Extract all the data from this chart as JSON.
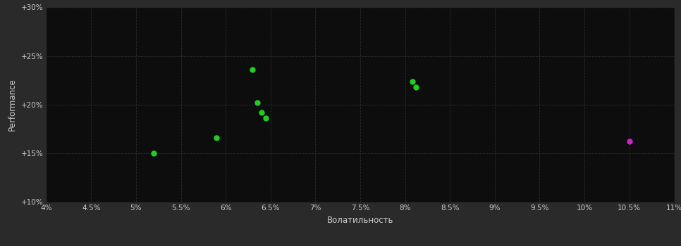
{
  "background_color": "#2a2a2a",
  "plot_bg_color": "#0d0d0d",
  "grid_color": "#2d2d2d",
  "text_color": "#cccccc",
  "xlabel": "Волатильность",
  "ylabel": "Performance",
  "xlim": [
    0.04,
    0.11
  ],
  "ylim": [
    0.1,
    0.3
  ],
  "xticks": [
    0.04,
    0.045,
    0.05,
    0.055,
    0.06,
    0.065,
    0.07,
    0.075,
    0.08,
    0.085,
    0.09,
    0.095,
    0.1,
    0.105,
    0.11
  ],
  "xtick_labels": [
    "4%",
    "4.5%",
    "5%",
    "5.5%",
    "6%",
    "6.5%",
    "7%",
    "7.5%",
    "8%",
    "8.5%",
    "9%",
    "9.5%",
    "10%",
    "10.5%",
    "11%"
  ],
  "yticks": [
    0.1,
    0.15,
    0.2,
    0.25,
    0.3
  ],
  "ytick_labels": [
    "+10%",
    "+15%",
    "+20%",
    "+25%",
    "+30%"
  ],
  "green_points": [
    [
      0.052,
      0.15
    ],
    [
      0.059,
      0.166
    ],
    [
      0.063,
      0.236
    ],
    [
      0.0635,
      0.202
    ],
    [
      0.064,
      0.192
    ],
    [
      0.0645,
      0.186
    ],
    [
      0.0808,
      0.224
    ],
    [
      0.0812,
      0.218
    ]
  ],
  "purple_points": [
    [
      0.105,
      0.162
    ]
  ],
  "green_color": "#22cc22",
  "purple_color": "#cc22cc",
  "marker_size": 6
}
